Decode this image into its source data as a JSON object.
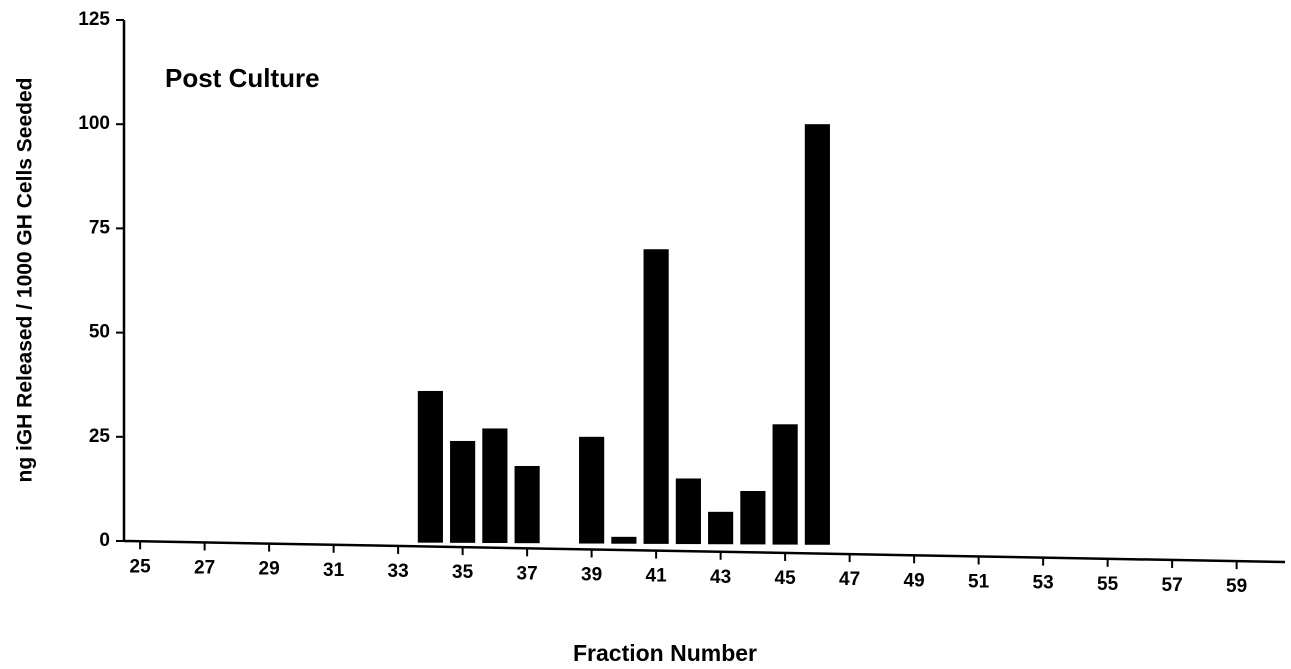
{
  "chart_data": {
    "type": "bar",
    "annotation": "Post Culture",
    "xlabel": "Fraction Number",
    "ylabel": "ng iGH Released / 1000 GH Cells Seeded",
    "x": [
      34,
      35,
      36,
      37,
      39,
      40,
      41,
      42,
      43,
      44,
      45,
      46
    ],
    "values": [
      36,
      24,
      27,
      18,
      25,
      1,
      70,
      15,
      7,
      12,
      28,
      100
    ],
    "color": "#000000",
    "xlim": [
      24.5,
      60.5
    ],
    "xticks": [
      25,
      27,
      29,
      31,
      33,
      35,
      37,
      39,
      41,
      43,
      45,
      47,
      49,
      51,
      53,
      55,
      57,
      59
    ],
    "ylim": [
      0,
      125
    ],
    "yticks": [
      0,
      25,
      50,
      75,
      100,
      125
    ],
    "grid": false
  }
}
